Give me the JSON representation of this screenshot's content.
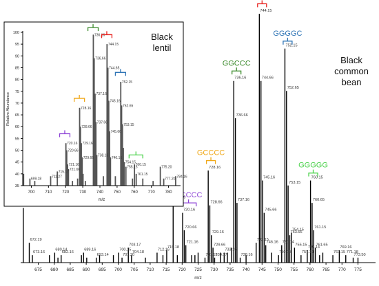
{
  "chart_data": [
    {
      "type": "bar",
      "title": "",
      "legend_lines": [
        "Black",
        "common bean"
      ],
      "xlabel": "m/z",
      "ylabel": "",
      "xlim": [
        669.5,
        780.5
      ],
      "ylim": [
        0,
        100
      ],
      "y_axis_shown": false,
      "x_ticks": [
        675,
        680,
        685,
        690,
        695,
        700,
        705,
        710,
        715,
        720,
        725,
        730,
        735,
        740,
        745,
        750,
        755,
        760,
        765,
        770,
        775
      ],
      "x": [
        670.3,
        672.19,
        673.16,
        678.5,
        680.14,
        681.16,
        682.16,
        688.5,
        689.16,
        690.16,
        693.14,
        694.18,
        698.5,
        700.15,
        701.2,
        703.17,
        704.18,
        708.5,
        712.16,
        714.0,
        715.18,
        717.19,
        718.5,
        720.16,
        720.66,
        721.16,
        723.0,
        724.0,
        725.0,
        727.15,
        728.16,
        728.66,
        729.16,
        729.66,
        730.17,
        732.0,
        733.15,
        734.15,
        735.5,
        736.16,
        736.66,
        737.16,
        738.16,
        740.0,
        743.15,
        744.15,
        744.66,
        745.16,
        745.66,
        746.16,
        748.0,
        750.14,
        751.14,
        752.15,
        752.65,
        753.15,
        753.66,
        754.15,
        755.15,
        757.19,
        759.14,
        760.15,
        760.65,
        761.15,
        761.65,
        763.0,
        764.0,
        767.15,
        769.16,
        771.18,
        773.5,
        775.0
      ],
      "values": [
        22,
        8,
        3,
        3,
        4,
        2,
        3,
        3,
        4,
        2,
        2,
        3,
        3,
        4,
        2,
        6,
        3,
        2,
        4,
        3,
        5,
        25,
        3,
        20,
        13,
        7,
        3,
        3,
        4,
        2,
        37,
        23,
        11,
        6,
        2,
        4,
        4,
        4,
        6,
        73,
        58,
        24,
        2,
        3,
        8,
        100,
        73,
        33,
        20,
        7,
        4,
        3,
        7,
        86,
        69,
        31,
        11,
        12,
        6,
        3,
        5,
        33,
        24,
        13,
        6,
        3,
        4,
        3,
        5,
        3,
        2,
        2
      ],
      "peak_labels": [
        {
          "mz": 672.19,
          "text": "672.19"
        },
        {
          "mz": 673.16,
          "text": "673.16"
        },
        {
          "mz": 680.14,
          "text": "680.14"
        },
        {
          "mz": 682.16,
          "text": "682.16"
        },
        {
          "mz": 689.16,
          "text": "689.16"
        },
        {
          "mz": 693.14,
          "text": "693.14"
        },
        {
          "mz": 700.15,
          "text": "700.15"
        },
        {
          "mz": 701.2,
          "text": "701.20"
        },
        {
          "mz": 703.17,
          "text": "703.17"
        },
        {
          "mz": 704.18,
          "text": "704.18"
        },
        {
          "mz": 712.16,
          "text": "712.16"
        },
        {
          "mz": 715.18,
          "text": "715.18"
        },
        {
          "mz": 717.19,
          "text": "717.19"
        },
        {
          "mz": 720.16,
          "text": "720.16"
        },
        {
          "mz": 720.66,
          "text": "720.66"
        },
        {
          "mz": 721.16,
          "text": "721.16"
        },
        {
          "mz": 727.15,
          "text": "727.15"
        },
        {
          "mz": 728.16,
          "text": "728.16"
        },
        {
          "mz": 728.66,
          "text": "728.66"
        },
        {
          "mz": 729.16,
          "text": "729.16"
        },
        {
          "mz": 729.66,
          "text": "729.66"
        },
        {
          "mz": 730.17,
          "text": "730.17"
        },
        {
          "mz": 733.15,
          "text": "733.15"
        },
        {
          "mz": 736.16,
          "text": "736.16"
        },
        {
          "mz": 736.66,
          "text": "736.66"
        },
        {
          "mz": 737.16,
          "text": "737.16"
        },
        {
          "mz": 738.16,
          "text": "738.16"
        },
        {
          "mz": 743.15,
          "text": "743.15"
        },
        {
          "mz": 744.15,
          "text": "744.15"
        },
        {
          "mz": 744.66,
          "text": "744.66"
        },
        {
          "mz": 745.16,
          "text": "745.16"
        },
        {
          "mz": 745.66,
          "text": "745.66"
        },
        {
          "mz": 746.16,
          "text": "746.16"
        },
        {
          "mz": 750.14,
          "text": "750.14"
        },
        {
          "mz": 751.14,
          "text": "751.14"
        },
        {
          "mz": 752.15,
          "text": "752.15"
        },
        {
          "mz": 752.65,
          "text": "752.65"
        },
        {
          "mz": 753.15,
          "text": "753.15"
        },
        {
          "mz": 753.66,
          "text": "753.66"
        },
        {
          "mz": 754.15,
          "text": "754.15"
        },
        {
          "mz": 755.15,
          "text": "755.15"
        },
        {
          "mz": 757.19,
          "text": "757.19"
        },
        {
          "mz": 759.14,
          "text": "759.14"
        },
        {
          "mz": 760.15,
          "text": "760.15"
        },
        {
          "mz": 760.65,
          "text": "760.65"
        },
        {
          "mz": 761.15,
          "text": "761.15"
        },
        {
          "mz": 761.65,
          "text": "761.65"
        },
        {
          "mz": 767.15,
          "text": "767.15"
        },
        {
          "mz": 769.16,
          "text": "769.16"
        },
        {
          "mz": 771.18,
          "text": "771.18"
        },
        {
          "mz": 773.5,
          "text": "773.50"
        }
      ],
      "groups": [
        {
          "name": "CCCCC",
          "color": "#8e44d6",
          "from": 719.6,
          "to": 724.4,
          "y": 24
        },
        {
          "name": "GCCCC",
          "color": "#f0a818",
          "from": 727.6,
          "to": 730.4,
          "y": 41
        },
        {
          "name": "GGCCC",
          "color": "#3a8a2a",
          "from": 735.6,
          "to": 738.4,
          "y": 77
        },
        {
          "name": "GGGCC",
          "color": "#e8201c",
          "from": 743.6,
          "to": 746.4,
          "y": 104
        },
        {
          "name": "GGGGC",
          "color": "#2e74b5",
          "from": 751.6,
          "to": 754.4,
          "y": 89
        },
        {
          "name": "GGGGG",
          "color": "#4cd24c",
          "from": 759.6,
          "to": 762.4,
          "y": 36
        }
      ]
    },
    {
      "type": "bar",
      "title": "",
      "legend_lines": [
        "Black",
        "lentil"
      ],
      "xlabel": "m/z",
      "ylabel": "Relative Abundance",
      "xlim": [
        695,
        787
      ],
      "ylim": [
        35,
        100
      ],
      "y_ticks": [
        35,
        40,
        45,
        50,
        55,
        60,
        65,
        70,
        75,
        80,
        85,
        90,
        95,
        100
      ],
      "x_ticks": [
        700,
        710,
        720,
        730,
        740,
        750,
        760,
        770,
        780
      ],
      "x": [
        695.5,
        699.18,
        702.0,
        711.27,
        715.17,
        720.16,
        720.66,
        721.16,
        721.66,
        724.0,
        727.0,
        728.16,
        728.66,
        729.16,
        729.66,
        730.17,
        731.5,
        736.16,
        736.66,
        737.16,
        737.66,
        738.16,
        742.0,
        744.15,
        744.65,
        745.16,
        745.66,
        746.16,
        749.0,
        752.15,
        752.65,
        753.15,
        753.65,
        754.15,
        755.15,
        759.0,
        760.15,
        761.15,
        765.0,
        771.0,
        775.2,
        777.2,
        784.16
      ],
      "values": [
        40,
        38,
        37,
        39,
        41,
        53,
        50,
        44,
        42,
        37,
        38,
        68,
        60,
        53,
        47,
        40,
        37,
        99,
        89,
        74,
        62,
        48,
        39,
        95,
        85,
        71,
        58,
        47,
        39,
        79,
        69,
        61,
        51,
        45,
        43,
        38,
        44,
        40,
        38,
        37,
        43,
        38,
        39
      ],
      "peak_labels": [
        {
          "mz": 699.18,
          "text": "699.18"
        },
        {
          "mz": 711.27,
          "text": "711.27"
        },
        {
          "mz": 715.17,
          "text": "715.17"
        },
        {
          "mz": 720.16,
          "text": "720.16"
        },
        {
          "mz": 720.66,
          "text": "720.66"
        },
        {
          "mz": 721.16,
          "text": "721.16"
        },
        {
          "mz": 721.66,
          "text": "721.66"
        },
        {
          "mz": 728.16,
          "text": "728.16"
        },
        {
          "mz": 728.66,
          "text": "728.66"
        },
        {
          "mz": 729.16,
          "text": "729.16"
        },
        {
          "mz": 729.66,
          "text": "729.66"
        },
        {
          "mz": 736.16,
          "text": "736.16"
        },
        {
          "mz": 736.66,
          "text": "736.66"
        },
        {
          "mz": 737.16,
          "text": "737.16"
        },
        {
          "mz": 737.66,
          "text": "737.66"
        },
        {
          "mz": 738.16,
          "text": "738.16"
        },
        {
          "mz": 744.15,
          "text": "744.15"
        },
        {
          "mz": 744.65,
          "text": "744.65"
        },
        {
          "mz": 745.16,
          "text": "745.16"
        },
        {
          "mz": 745.66,
          "text": "745.66"
        },
        {
          "mz": 746.16,
          "text": "746.16"
        },
        {
          "mz": 752.15,
          "text": "752.15"
        },
        {
          "mz": 752.65,
          "text": "752.65"
        },
        {
          "mz": 753.15,
          "text": "753.15"
        },
        {
          "mz": 754.15,
          "text": "754.15"
        },
        {
          "mz": 755.15,
          "text": "755.15"
        },
        {
          "mz": 760.15,
          "text": "760.15"
        },
        {
          "mz": 761.15,
          "text": "761.15"
        },
        {
          "mz": 775.2,
          "text": "775.20"
        },
        {
          "mz": 777.2,
          "text": "777.20"
        },
        {
          "mz": 784.16,
          "text": "784.16"
        }
      ],
      "groups": [
        {
          "name": "",
          "color": "#8e44d6",
          "from": 716.5,
          "to": 722.5,
          "y": 57
        },
        {
          "name": "",
          "color": "#f0a818",
          "from": 725.0,
          "to": 731.0,
          "y": 72
        },
        {
          "name": "",
          "color": "#3a8a2a",
          "from": 733.0,
          "to": 739.0,
          "y": 102
        },
        {
          "name": "",
          "color": "#e8201c",
          "from": 741.0,
          "to": 747.0,
          "y": 99
        },
        {
          "name": "",
          "color": "#2e74b5",
          "from": 749.0,
          "to": 755.0,
          "y": 83
        },
        {
          "name": "",
          "color": "#4cd24c",
          "from": 757.0,
          "to": 765.0,
          "y": 48
        }
      ]
    }
  ]
}
